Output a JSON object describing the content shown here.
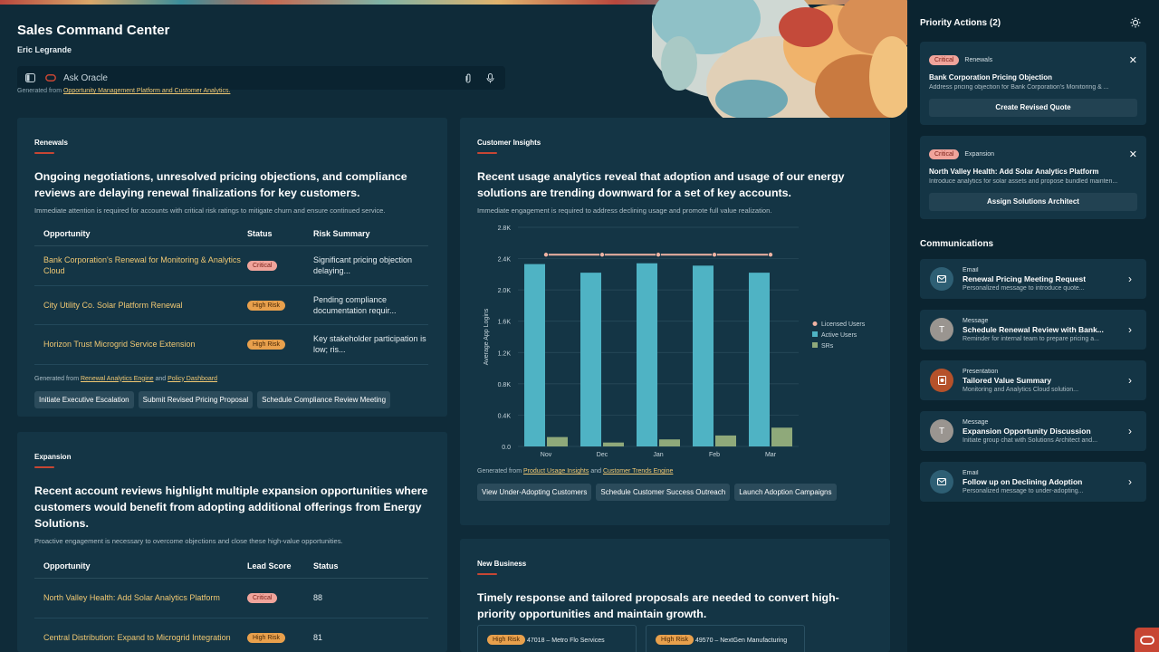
{
  "app": {
    "title": "Sales Command Center",
    "user": "Eric Legrande"
  },
  "ask": {
    "placeholder": "Ask Oracle"
  },
  "generated_top": {
    "prefix": "Generated from",
    "link": "Opportunity Management Platform and Customer Analytics."
  },
  "renewals": {
    "label": "Renewals",
    "headline": "Ongoing negotiations, unresolved pricing objections, and compliance reviews are delaying renewal finalizations for key customers.",
    "subtext": "Immediate attention is required for accounts with critical risk ratings to mitigate churn and ensure continued service.",
    "columns": [
      "Opportunity",
      "Status",
      "Risk Summary"
    ],
    "rows": [
      {
        "opportunity": "Bank Corporation's Renewal for Monitoring & Analytics Cloud",
        "status": "Critical",
        "risk": "Significant pricing objection delaying..."
      },
      {
        "opportunity": "City Utility Co. Solar Platform Renewal",
        "status": "High Risk",
        "risk": "Pending compliance documentation requir..."
      },
      {
        "opportunity": "Horizon Trust Microgrid Service Extension",
        "status": "High Risk",
        "risk": "Key stakeholder participation is low; ris..."
      }
    ],
    "generated": {
      "prefix": "Generated from",
      "link1": "Renewal Analytics Engine",
      "and": "and",
      "link2": "Policy Dashboard"
    },
    "actions": [
      "Initiate Executive Escalation",
      "Submit Revised Pricing Proposal",
      "Schedule Compliance Review Meeting"
    ]
  },
  "expansion": {
    "label": "Expansion",
    "headline": "Recent account reviews highlight multiple expansion opportunities where customers would benefit from adopting additional offerings from Energy Solutions.",
    "subtext": "Proactive engagement is necessary to overcome objections and close these high-value opportunities.",
    "columns": [
      "Opportunity",
      "Lead Score",
      "Status"
    ],
    "rows": [
      {
        "opportunity": "North Valley Health: Add Solar Analytics Platform",
        "lead": "Critical",
        "status": "88"
      },
      {
        "opportunity": "Central Distribution: Expand to Microgrid Integration",
        "lead": "High Risk",
        "status": "81"
      }
    ]
  },
  "insights": {
    "label": "Customer Insights",
    "headline": "Recent usage analytics reveal that adoption and usage of our energy solutions are trending downward for a set of key accounts.",
    "subtext": "Immediate engagement is required to address declining usage and promote full value realization.",
    "generated": {
      "prefix": "Generated from",
      "link1": "Product Usage Insights",
      "and": "and",
      "link2": "Customer Trends Engine"
    },
    "actions": [
      "View Under-Adopting Customers",
      "Schedule Customer Success Outreach",
      "Launch Adoption Campaigns"
    ]
  },
  "chart_data": {
    "type": "bar",
    "categories": [
      "Nov",
      "Dec",
      "Jan",
      "Feb",
      "Mar"
    ],
    "ylabel": "Average App Logins",
    "ylim": [
      0,
      2800
    ],
    "yticks": [
      "0.0",
      "0.4K",
      "0.8K",
      "1.2K",
      "1.6K",
      "2.0K",
      "2.4K",
      "2.8K"
    ],
    "series": [
      {
        "name": "Licensed Users",
        "kind": "line",
        "color": "#f0b3a3",
        "values": [
          2450,
          2450,
          2450,
          2450,
          2450
        ]
      },
      {
        "name": "Active Users",
        "kind": "bar",
        "color": "#4fb3c4",
        "values": [
          2330,
          2220,
          2340,
          2310,
          2220
        ]
      },
      {
        "name": "SRs",
        "kind": "bar",
        "color": "#8fa97a",
        "values": [
          120,
          50,
          90,
          140,
          240
        ]
      }
    ],
    "legend": "right",
    "grid": true
  },
  "new_business": {
    "label": "New Business",
    "headline": "Timely response and tailored proposals are needed to convert high-priority opportunities and maintain growth.",
    "chips": [
      {
        "badge": "High Risk",
        "text": "47018 – Metro Flo Services"
      },
      {
        "badge": "High Risk",
        "text": "49570 – NextGen Manufacturing"
      }
    ]
  },
  "sidebar": {
    "priority_title": "Priority Actions (2)",
    "priority": [
      {
        "badge": "Critical",
        "tag": "Renewals",
        "title": "Bank Corporation Pricing Objection",
        "desc": "Address pricing objection for Bank Corporation's Monitoring & ...",
        "button": "Create Revised Quote"
      },
      {
        "badge": "Critical",
        "tag": "Expansion",
        "title": "North Valley Health: Add Solar Analytics Platform",
        "desc": "Introduce analytics for solar assets and propose bundled mainten...",
        "button": "Assign Solutions Architect"
      }
    ],
    "comm_title": "Communications",
    "comms": [
      {
        "type": "Email",
        "title": "Renewal Pricing Meeting Request",
        "desc": "Personalized message to introduce quote...",
        "icon": "mail-icon",
        "avatar": "",
        "color": "#2e5f74"
      },
      {
        "type": "Message",
        "title": "Schedule Renewal Review with Bank...",
        "desc": "Reminder for internal team to prepare pricing a...",
        "icon": "avatar-icon",
        "avatar": "T",
        "color": "#9a9590"
      },
      {
        "type": "Presentation",
        "title": "Tailored Value Summary",
        "desc": "Monitoring and Analytics Cloud solution...",
        "icon": "presentation-icon",
        "avatar": "",
        "color": "#b5512a"
      },
      {
        "type": "Message",
        "title": "Expansion Opportunity Discussion",
        "desc": "Initiate group chat with Solutions Architect and...",
        "icon": "avatar-icon",
        "avatar": "T",
        "color": "#9a9590"
      },
      {
        "type": "Email",
        "title": "Follow up on Declining Adoption",
        "desc": "Personalized message to under-adopting...",
        "icon": "mail-icon",
        "avatar": "",
        "color": "#2e5f74"
      }
    ]
  }
}
